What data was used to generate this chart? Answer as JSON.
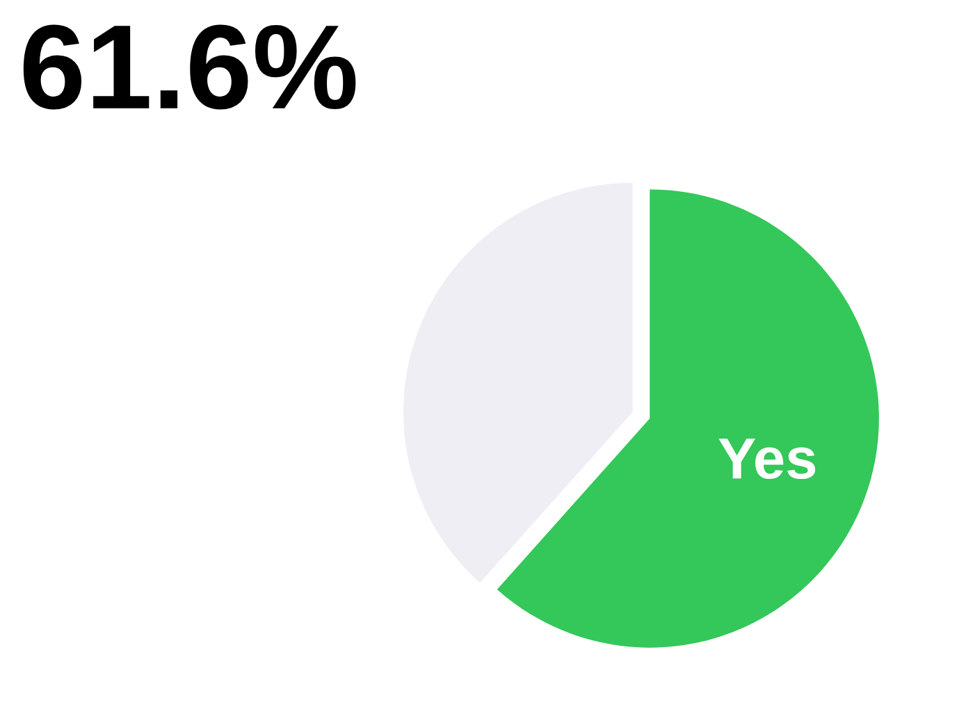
{
  "chart_data": {
    "type": "pie",
    "title": "61.6%",
    "categories": [
      "Yes",
      null
    ],
    "values": [
      61.6,
      38.4
    ],
    "colors": [
      "#34c759",
      "#efeef4"
    ],
    "legend": false
  }
}
